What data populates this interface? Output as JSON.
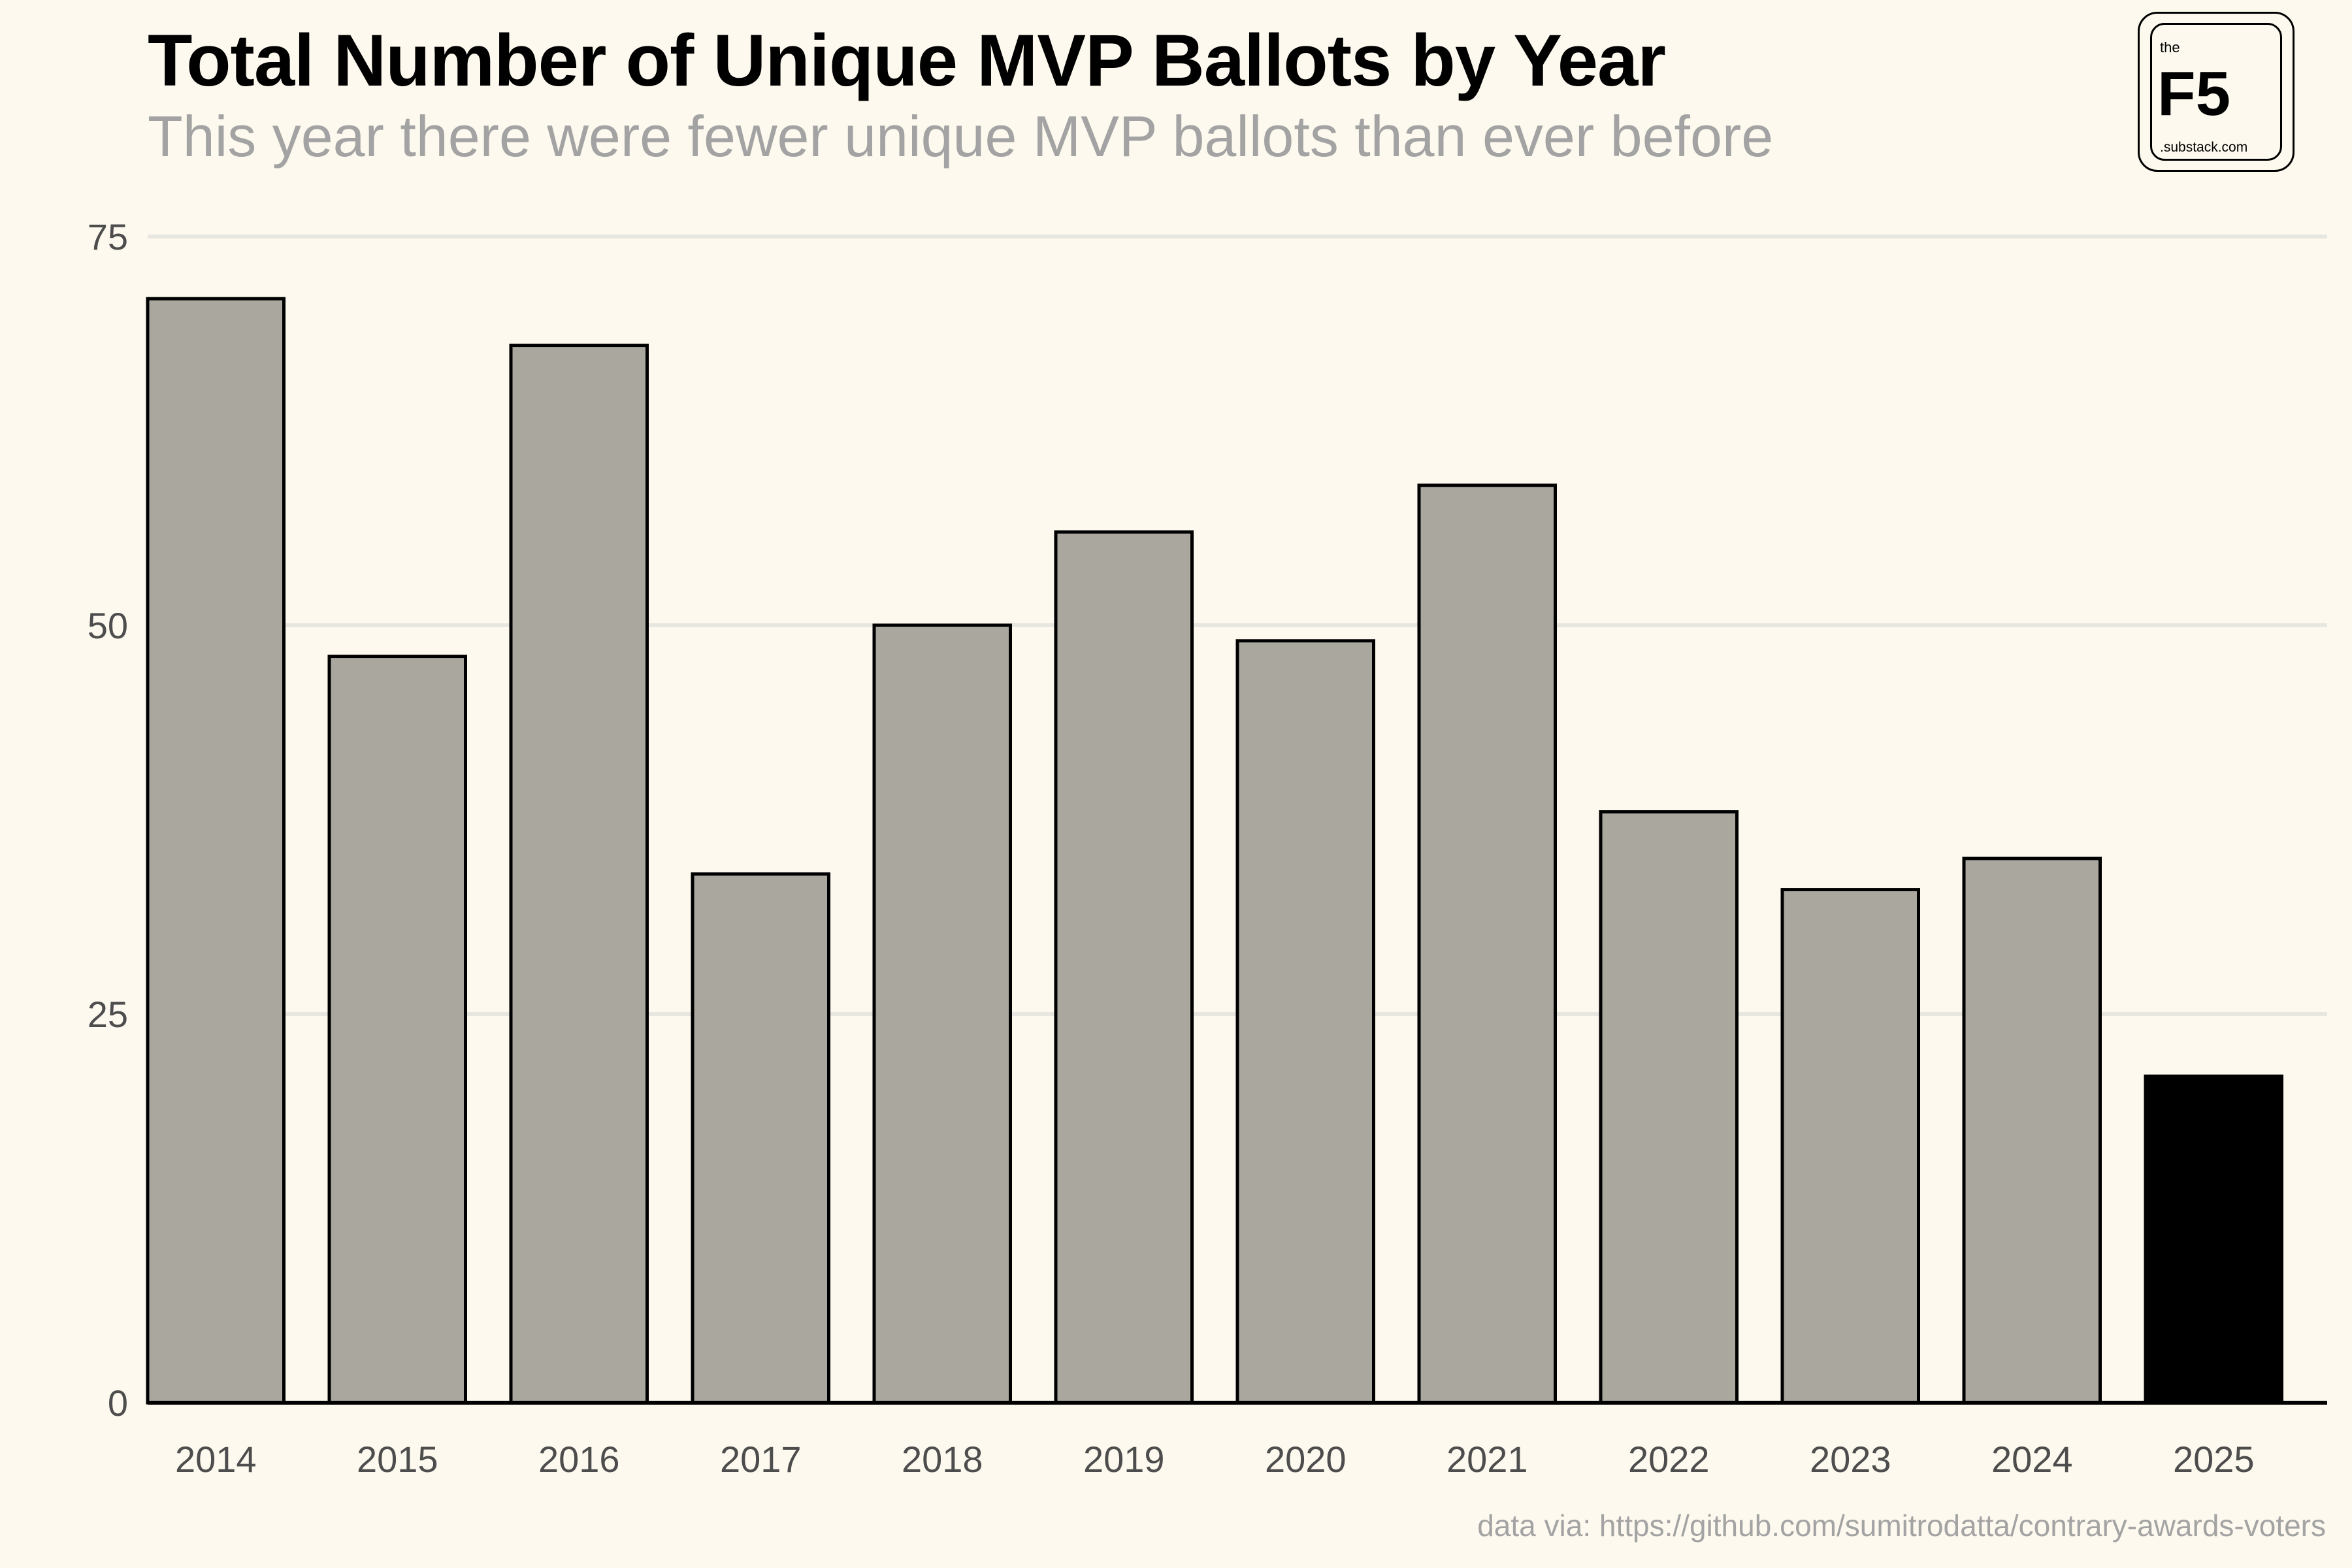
{
  "title": "Total Number of Unique MVP Ballots by Year",
  "subtitle": "This year there were fewer unique MVP ballots than ever before",
  "logo": {
    "top_text": "the",
    "main_text": "F5",
    "bottom_text": ".substack.com"
  },
  "caption": "data via: https://github.com/sumitrodatta/contrary-awards-voters",
  "colors": {
    "background": "#fdf9ee",
    "bar_default": "#aaa79f",
    "bar_highlight": "#000000",
    "bar_outline": "#000000",
    "gridline": "#e8e6e1",
    "title": "#000000",
    "subtitle": "#a3a3a3",
    "tick_label": "#4d4d4d"
  },
  "chart_data": {
    "type": "bar",
    "title": "Total Number of Unique MVP Ballots by Year",
    "subtitle": "This year there were fewer unique MVP ballots than ever before",
    "xlabel": "",
    "ylabel": "",
    "categories": [
      "2014",
      "2015",
      "2016",
      "2017",
      "2018",
      "2019",
      "2020",
      "2021",
      "2022",
      "2023",
      "2024",
      "2025"
    ],
    "values": [
      71,
      48,
      68,
      34,
      50,
      56,
      49,
      59,
      38,
      33,
      35,
      21
    ],
    "highlight_category": "2025",
    "ylim": [
      0,
      75
    ],
    "yticks": [
      0,
      25,
      50,
      75
    ],
    "grid": "horizontal",
    "legend": "none"
  }
}
